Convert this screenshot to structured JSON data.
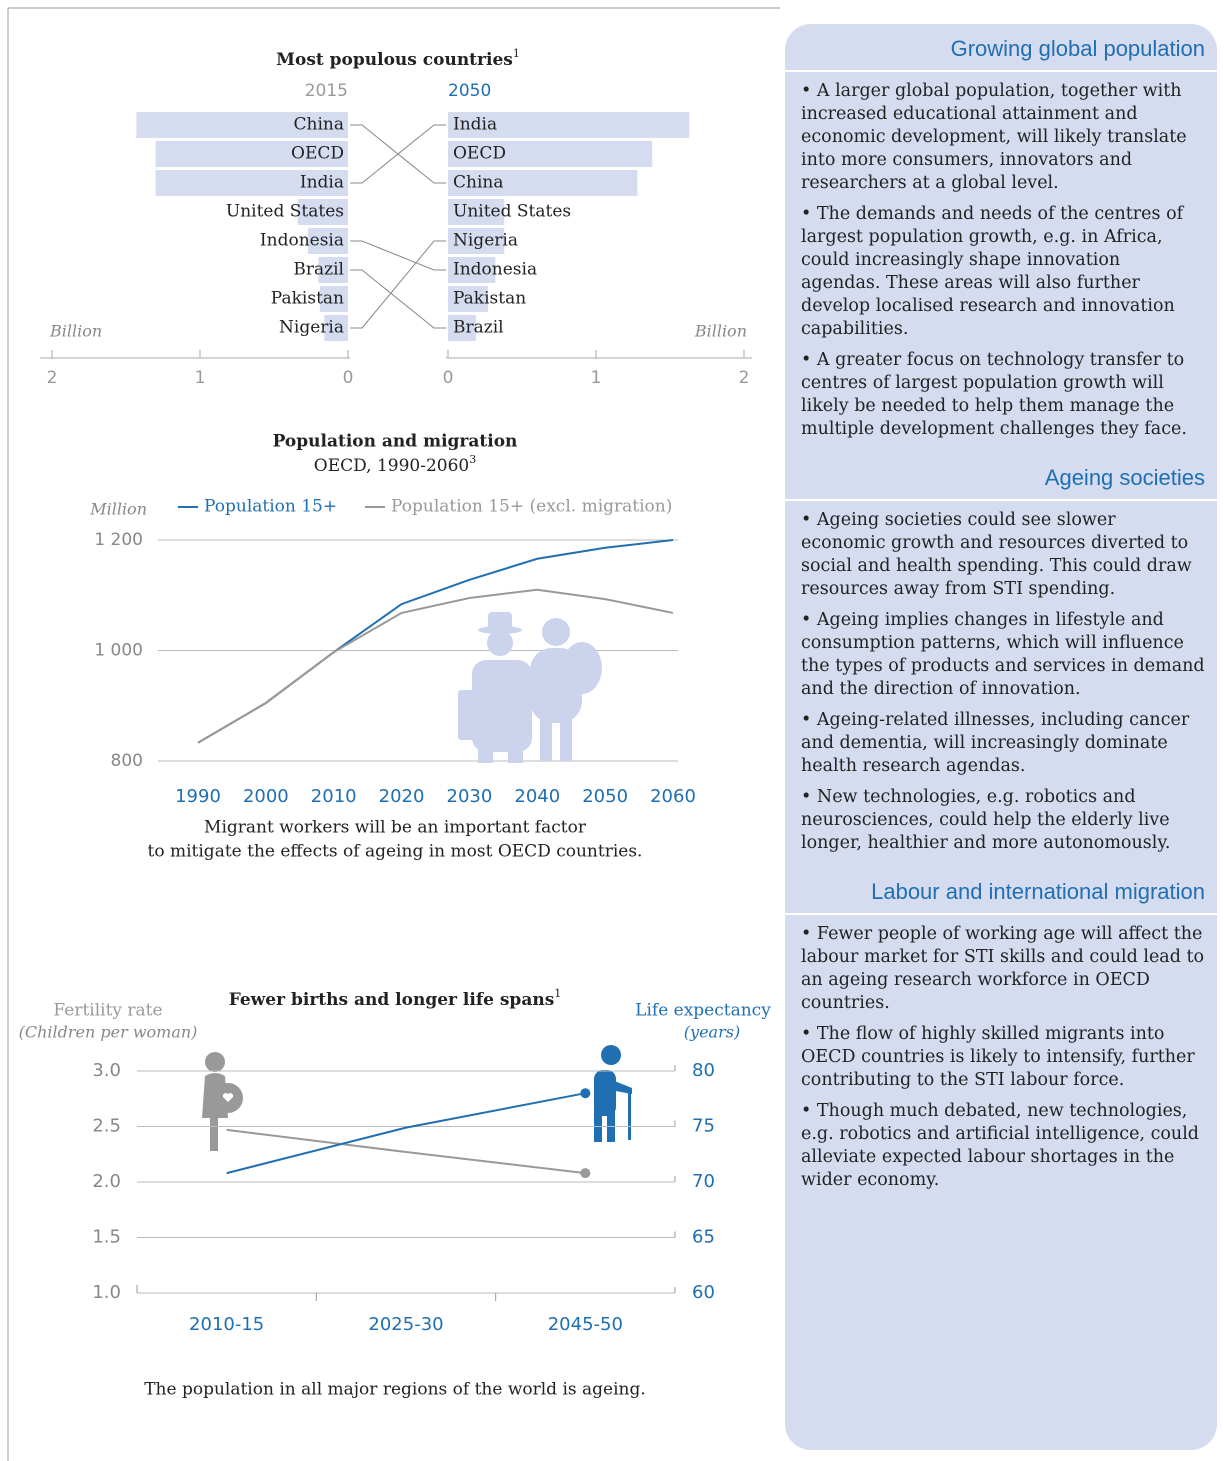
{
  "chart_data": [
    {
      "type": "butterfly",
      "title": "Most populous countries",
      "title_note": "1",
      "axis_label": "Billion",
      "xlim": [
        0,
        2
      ],
      "xticks": [
        0,
        1,
        2
      ],
      "color": "#d5dcef",
      "series": [
        {
          "name": "2015",
          "color": "#999999",
          "categories": [
            "China",
            "OECD",
            "India",
            "United States",
            "Indonesia",
            "Brazil",
            "Pakistan",
            "Nigeria"
          ],
          "values": [
            1.43,
            1.3,
            1.3,
            0.34,
            0.27,
            0.2,
            0.19,
            0.16
          ]
        },
        {
          "name": "2050",
          "color": "#1f6fb2",
          "categories": [
            "India",
            "OECD",
            "China",
            "United States",
            "Nigeria",
            "Indonesia",
            "Pakistan",
            "Brazil"
          ],
          "values": [
            1.63,
            1.38,
            1.28,
            0.38,
            0.38,
            0.32,
            0.27,
            0.19
          ]
        }
      ]
    },
    {
      "type": "line",
      "title": "Population and migration",
      "subtitle": "OECD, 1990-2060",
      "subtitle_note": "3",
      "ylabel": "Million",
      "x": [
        1990,
        2000,
        2010,
        2020,
        2030,
        2040,
        2050,
        2060
      ],
      "xlim": [
        1990,
        2060
      ],
      "xticks": [
        1990,
        2000,
        2010,
        2020,
        2030,
        2040,
        2050,
        2060
      ],
      "ylim": [
        800,
        1200
      ],
      "yticks": [
        800,
        {
          "value": 1000,
          "label": "1 000"
        },
        {
          "value": 1200,
          "label": "1 200"
        }
      ],
      "grid": true,
      "legend": "top",
      "series": [
        {
          "name": "Population 15+",
          "color": "#1f6fb2",
          "values": [
            833,
            905,
            997,
            1084,
            1128,
            1166,
            1186,
            1200
          ]
        },
        {
          "name": "Population 15+ (excl. migration)",
          "color": "#999999",
          "values": [
            833,
            905,
            997,
            1068,
            1095,
            1110,
            1093,
            1068
          ]
        }
      ],
      "caption": [
        "Migrant workers will be an important factor",
        "to mitigate the effects of ageing in most OECD countries."
      ]
    },
    {
      "type": "dual_line",
      "title": "Fewer births and longer life spans",
      "title_note": "1",
      "ylabel": [
        "Fertility rate",
        "(Children per woman)"
      ],
      "y2label": [
        "Life expectancy",
        "(years)"
      ],
      "categories": [
        "2010-15",
        "2025-30",
        "2045-50"
      ],
      "ylim": [
        1,
        3
      ],
      "yticks": [
        {
          "value": 1,
          "label": "1.0"
        },
        1.5,
        {
          "value": 2,
          "label": "2.0"
        },
        2.5,
        {
          "value": 3,
          "label": "3.0"
        }
      ],
      "y2lim": [
        60,
        80
      ],
      "y2ticks": [
        60,
        65,
        70,
        75,
        80
      ],
      "grid": true,
      "series": [
        {
          "color": "#999999",
          "values": [
            2.47,
            2.27,
            2.08
          ]
        },
        {
          "color": "#1f6fb2",
          "axis": "y2",
          "values": [
            70.8,
            74.9,
            78.0
          ]
        }
      ],
      "caption": [
        "The population in all major regions of the world is ageing."
      ]
    }
  ],
  "panel": {
    "sections": [
      {
        "heading": "Growing global population",
        "bullets": [
          "• A larger global population, together with increased educational attainment and economic development, will likely translate into more consumers, innovators and researchers at a global level.",
          "• The demands and needs of the centres of largest population growth, e.g. in Africa, could increasingly shape innovation agendas. These areas will also further develop localised research and innovation capabilities.",
          "• A greater focus on technology transfer to centres of largest population growth will likely be needed to help them manage the multiple development challenges they face."
        ]
      },
      {
        "heading": "Ageing societies",
        "bullets": [
          "• Ageing societies could see slower economic growth and resources diverted to social and health spending. This could draw resources away from STI spending.",
          "• Ageing implies changes in lifestyle and consumption patterns, which will influence the types of products and services in demand and the direction of innovation.",
          "• Ageing-related illnesses, including cancer and dementia, will increasingly dominate health research agendas.",
          "• New technologies, e.g. robotics and neurosciences, could help the elderly live longer, healthier and more autonomously."
        ]
      },
      {
        "heading": "Labour and international migration",
        "bullets": [
          "• Fewer people of working age will affect the labour market for STI skills and could lead to an ageing research workforce in OECD countries.",
          "• The flow of highly skilled migrants into OECD countries is likely to intensify, further contributing to the STI labour force.",
          "• Though much debated, new technologies, e.g. robotics and artificial intelligence, could alleviate expected labour shortages in the wider economy."
        ]
      }
    ]
  }
}
